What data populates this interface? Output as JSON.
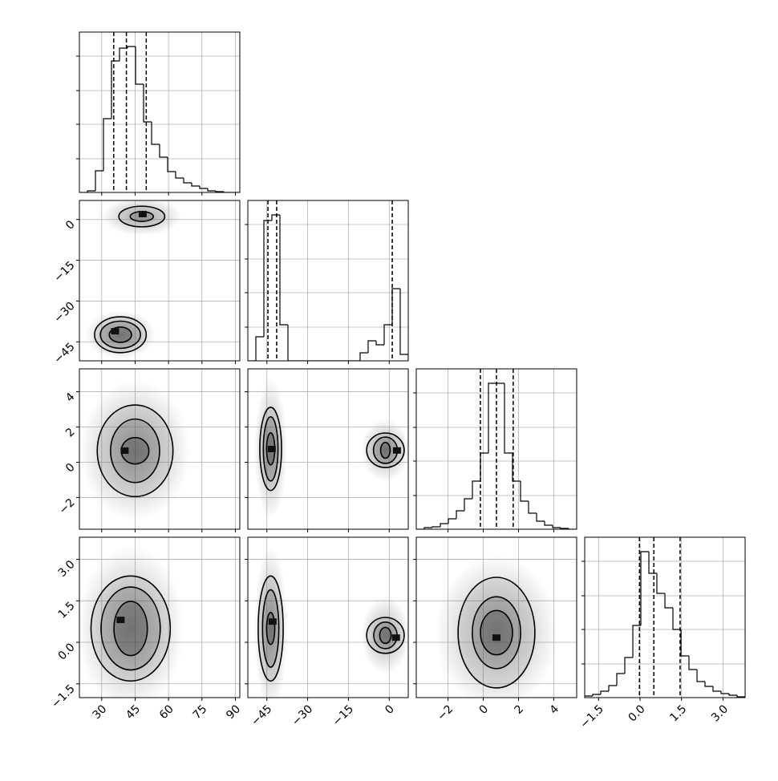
{
  "chart_data": {
    "type": "corner",
    "color": "#000000",
    "cloud_color": "#808080",
    "grid": true,
    "params": [
      {
        "lim": [
          20,
          92
        ],
        "ticks": [
          30,
          45,
          60,
          75,
          90
        ]
      },
      {
        "lim": [
          -52,
          7
        ],
        "ticks": [
          {
            "value": -45,
            "label": "−45"
          },
          {
            "value": -30,
            "label": "−30"
          },
          {
            "value": -15,
            "label": "−15"
          },
          0
        ]
      },
      {
        "lim": [
          -3.8,
          5.3
        ],
        "ticks": [
          {
            "value": -2,
            "label": "−2"
          },
          0,
          2,
          4
        ]
      },
      {
        "lim": [
          -2,
          3.8
        ],
        "ticks": [
          {
            "value": -1.5,
            "label": "−1.5"
          },
          {
            "value": 0,
            "label": "0.0"
          },
          1.5,
          {
            "value": 3,
            "label": "3.0"
          }
        ]
      }
    ],
    "histograms": [
      {
        "param": 0,
        "ylim": [
          0,
          200
        ],
        "yticks": [
          42,
          85,
          127,
          170
        ],
        "bins": [
          20,
          23.6,
          27.2,
          30.8,
          34.4,
          38,
          41.6,
          45.2,
          48.8,
          52.4,
          56,
          59.6,
          63.2,
          66.8,
          70.4,
          74,
          77.6,
          81.2,
          84.8,
          88.4,
          92
        ],
        "counts": [
          0,
          2,
          27,
          92,
          164,
          180,
          182,
          135,
          88,
          60,
          44,
          26,
          18,
          12,
          8,
          5,
          2,
          1,
          0,
          0
        ],
        "quantiles": [
          35.4,
          41.1,
          50.0
        ]
      },
      {
        "param": 1,
        "ylim": [
          0,
          200
        ],
        "yticks": [
          42,
          85,
          127,
          170
        ],
        "bins": [
          -52,
          -49.05,
          -46.1,
          -43.15,
          -40.2,
          -37.25,
          -34.3,
          -31.35,
          -28.4,
          -25.45,
          -22.5,
          -19.55,
          -16.6,
          -13.65,
          -10.7,
          -7.75,
          -4.8,
          -1.85,
          1.1,
          4.05,
          7
        ],
        "counts": [
          0,
          30,
          175,
          182,
          45,
          0,
          0,
          0,
          0,
          0,
          0,
          0,
          0,
          0,
          10,
          25,
          20,
          45,
          90,
          8
        ],
        "quantiles": [
          -44.6,
          -41.4,
          1.1
        ]
      },
      {
        "param": 2,
        "ylim": [
          0,
          200
        ],
        "yticks": [
          42,
          85,
          127,
          170
        ],
        "bins": [
          -3.8,
          -3.345,
          -2.89,
          -2.435,
          -1.98,
          -1.525,
          -1.07,
          -0.615,
          -0.16,
          0.295,
          0.75,
          1.205,
          1.66,
          2.115,
          2.57,
          3.025,
          3.48,
          3.935,
          4.39,
          4.845,
          5.3
        ],
        "counts": [
          0,
          2,
          3,
          7,
          13,
          23,
          38,
          60,
          95,
          182,
          182,
          95,
          60,
          35,
          20,
          10,
          5,
          2,
          1,
          0
        ],
        "quantiles": [
          -0.16,
          0.75,
          1.7
        ]
      },
      {
        "param": 3,
        "ylim": [
          0,
          200
        ],
        "yticks": [
          42,
          85,
          127,
          170
        ],
        "bins": [
          -2,
          -1.71,
          -1.42,
          -1.13,
          -0.84,
          -0.55,
          -0.26,
          0.03,
          0.32,
          0.61,
          0.9,
          1.19,
          1.48,
          1.77,
          2.06,
          2.35,
          2.64,
          2.93,
          3.22,
          3.51,
          3.8
        ],
        "counts": [
          2,
          4,
          8,
          15,
          30,
          50,
          90,
          182,
          155,
          130,
          112,
          85,
          52,
          35,
          20,
          14,
          8,
          5,
          3,
          1
        ],
        "quantiles": [
          -0.02,
          0.5,
          1.45
        ]
      }
    ],
    "panels": [
      {
        "x_param": 0,
        "y_param": 1,
        "blobs": [
          {
            "cx": 48,
            "cy": 1.1,
            "spread": [
              18,
              7
            ],
            "contours": [
              [
                10.3,
                3.8
              ],
              [
                5.2,
                1.8
              ]
            ],
            "core": [
              48.4,
              2
            ]
          },
          {
            "cx": 38.4,
            "cy": -42.4,
            "spread": [
              16,
              9
            ],
            "contours": [
              [
                11.6,
                6.6
              ],
              [
                9,
                5
              ],
              [
                5,
                2.8
              ]
            ],
            "core": [
              36,
              -41.1
            ]
          }
        ]
      },
      {
        "x_param": 0,
        "y_param": 2,
        "blobs": [
          {
            "cx": 45,
            "cy": 0.65,
            "spread": [
              25,
              4
            ],
            "contours": [
              [
                17,
                2.6
              ],
              [
                11,
                1.8
              ],
              [
                6.2,
                0.75
              ]
            ],
            "core": [
              40.3,
              0.66
            ]
          }
        ]
      },
      {
        "x_param": 0,
        "y_param": 3,
        "blobs": [
          {
            "cx": 43,
            "cy": 0.5,
            "spread": [
              24,
              3
            ],
            "contours": [
              [
                17.8,
                1.9
              ],
              [
                13.3,
                1.5
              ],
              [
                7.5,
                0.98
              ]
            ],
            "core": [
              38.5,
              0.81
            ]
          }
        ]
      },
      {
        "x_param": 1,
        "y_param": 2,
        "blobs": [
          {
            "cx": -43.6,
            "cy": 0.76,
            "spread": [
              6,
              4
            ],
            "contours": [
              [
                4,
                2.36
              ],
              [
                2.7,
                1.82
              ],
              [
                1.5,
                0.91
              ]
            ],
            "core": [
              -43.2,
              0.75
            ]
          },
          {
            "cx": -1.4,
            "cy": 0.68,
            "spread": [
              9,
              1.8
            ],
            "contours": [
              [
                6.9,
                0.98
              ],
              [
                4.4,
                0.75
              ],
              [
                1.75,
                0.45
              ]
            ],
            "core": [
              2.85,
              0.67
            ]
          }
        ]
      },
      {
        "x_param": 1,
        "y_param": 3,
        "blobs": [
          {
            "cx": -43.6,
            "cy": 0.5,
            "spread": [
              6,
              3
            ],
            "contours": [
              [
                4.6,
                1.9
              ],
              [
                3,
                1.4
              ],
              [
                1.5,
                0.58
              ]
            ],
            "core": [
              -42.9,
              0.75
            ]
          },
          {
            "cx": -1.4,
            "cy": 0.25,
            "spread": [
              9,
              1.4
            ],
            "contours": [
              [
                6.9,
                0.65
              ],
              [
                4.3,
                0.48
              ],
              [
                2.1,
                0.29
              ]
            ],
            "core": [
              2.5,
              0.17
            ]
          }
        ]
      },
      {
        "x_param": 2,
        "y_param": 3,
        "blobs": [
          {
            "cx": 0.75,
            "cy": 0.35,
            "spread": [
              3.5,
              2.8
            ],
            "contours": [
              [
                2.18,
                2.0
              ],
              [
                1.37,
                1.3
              ],
              [
                0.91,
                0.8
              ]
            ],
            "core": [
              0.75,
              0.17
            ]
          }
        ]
      }
    ]
  }
}
